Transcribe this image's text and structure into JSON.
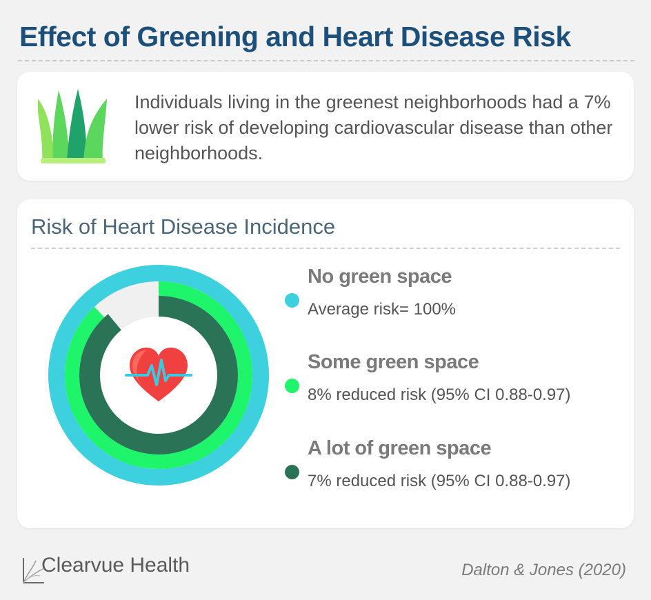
{
  "header": {
    "title": "Effect of Greening and Heart Disease Risk"
  },
  "intro": {
    "icon": "grass-icon",
    "text": "Individuals living in the greenest neighborhoods had a 7% lower risk of developing cardiovascular disease than other neighborhoods."
  },
  "chart_data": {
    "type": "radial-bar",
    "title": "Risk of Heart Disease Incidence",
    "center_icon": "heart-pulse-icon",
    "series": [
      {
        "name": "No green space",
        "description": "Average risk= 100%",
        "value": 100,
        "color": "#3dd0df"
      },
      {
        "name": "Some green space",
        "description": "8% reduced risk (95% CI 0.88-0.97)",
        "value": 92,
        "color": "#1ff56a"
      },
      {
        "name": "A lot of green space",
        "description": "7% reduced risk (95% CI 0.88-0.97)",
        "value": 93,
        "color": "#2b7356"
      }
    ],
    "scale_max": 100,
    "track_color": "#f0f0f0",
    "legend_placement": "right"
  },
  "footer": {
    "brand": "Clearvue Health",
    "citation": "Dalton & Jones (2020)"
  }
}
